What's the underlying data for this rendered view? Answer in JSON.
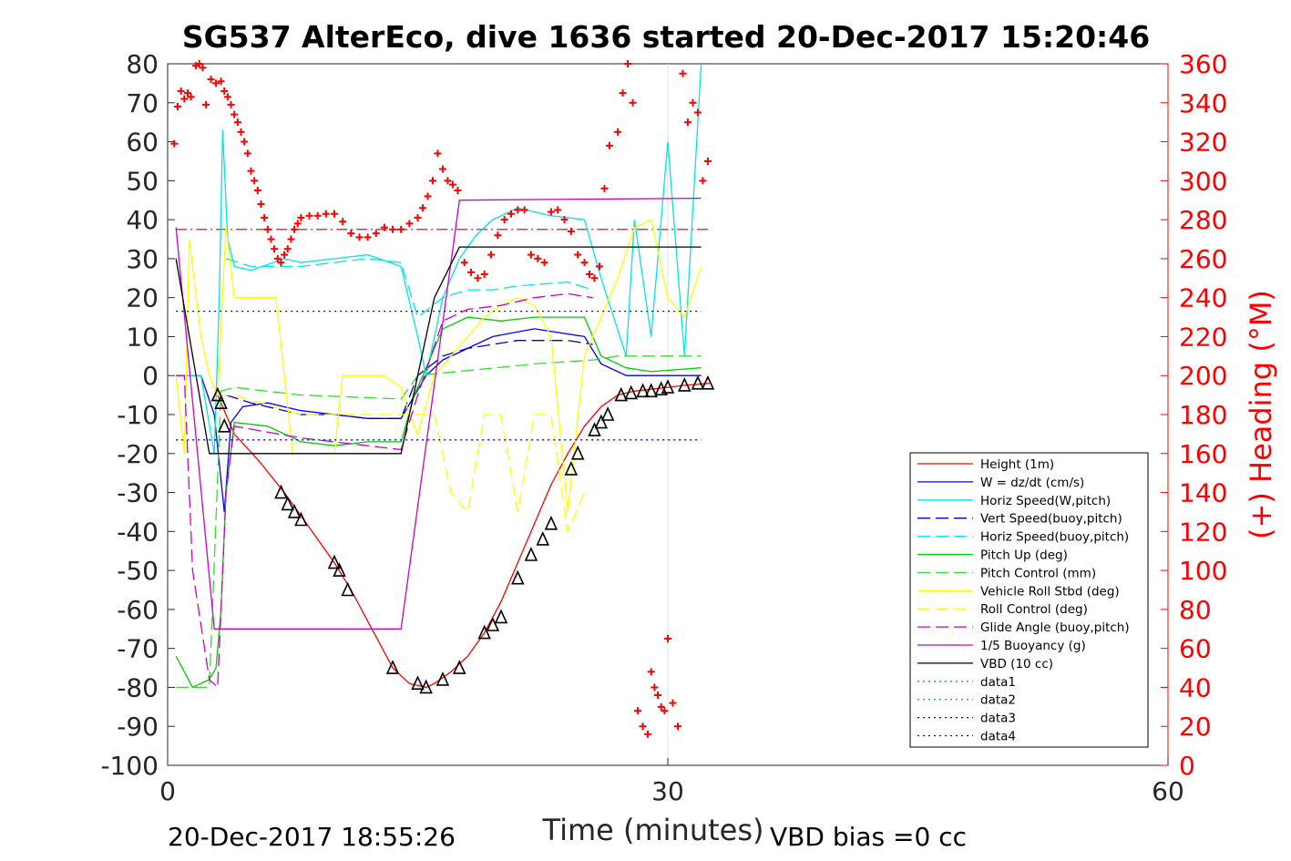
{
  "chart_data": {
    "type": "line",
    "title": "SG537 AlterEco, dive 1636 started 20-Dec-2017 15:20:46",
    "xlabel": "Time (minutes)",
    "ylabel": "",
    "y2label": "(+) Heading (°M)",
    "xlim": [
      0,
      60
    ],
    "ylim": [
      -100,
      80
    ],
    "y2lim": [
      0,
      360
    ],
    "x_ticks": [
      "0",
      "30",
      "60"
    ],
    "y_ticks": [
      "80",
      "70",
      "60",
      "50",
      "40",
      "30",
      "20",
      "10",
      "0",
      "-10",
      "-20",
      "-30",
      "-40",
      "-50",
      "-60",
      "-70",
      "-80",
      "-90",
      "-100"
    ],
    "y2_ticks": [
      "360",
      "340",
      "320",
      "300",
      "280",
      "260",
      "240",
      "220",
      "200",
      "180",
      "160",
      "140",
      "120",
      "100",
      "80",
      "60",
      "40",
      "20",
      "0"
    ],
    "grid": "x at 30 only",
    "legend_position": "lower-right",
    "footer_left": "20-Dec-2017 18:55:26",
    "footer_right": "VBD bias =0 cc",
    "series": [
      {
        "name": "Height (1m)",
        "color": "#ff0000",
        "style": "solid",
        "x": [
          3,
          4,
          5.5,
          7,
          8,
          10,
          11,
          12,
          13.5,
          14.5,
          15.5,
          16,
          17,
          18,
          19,
          20,
          21,
          22,
          23,
          24,
          25,
          26,
          27,
          28,
          29,
          30,
          31,
          32.5
        ],
        "y": [
          -5,
          -15,
          -22,
          -30,
          -36,
          -48,
          -55,
          -63,
          -75,
          -79,
          -80,
          -79,
          -76,
          -72,
          -66,
          -58,
          -48,
          -38,
          -28,
          -20,
          -13,
          -8,
          -5,
          -4,
          -3.5,
          -3,
          -2.5,
          -2
        ]
      },
      {
        "name": "W = dz/dt (cm/s)",
        "color": "#0000ff",
        "style": "solid",
        "x": [
          0.5,
          2,
          2.8,
          3.4,
          3.8,
          4.5,
          6,
          8,
          10,
          12,
          14,
          15.5,
          16.5,
          17.5,
          18.5,
          19.5,
          22,
          25,
          26,
          27.5,
          29,
          32
        ],
        "y": [
          0,
          0,
          -10,
          -35,
          -12,
          -8,
          -7,
          -9,
          -10,
          -11,
          -11,
          0,
          4,
          6,
          8,
          10,
          12,
          10,
          3,
          0,
          0,
          0
        ]
      },
      {
        "name": "Horiz Speed(W,pitch)",
        "color": "#00e5e5",
        "style": "solid",
        "x": [
          0.5,
          2,
          2.8,
          3.1,
          3.3,
          3.6,
          4,
          5,
          7,
          8,
          10,
          12,
          14,
          15,
          15.5,
          16.5,
          17.5,
          18.5,
          19.5,
          21,
          23,
          25,
          26,
          27.5,
          28,
          29,
          30,
          31,
          32
        ],
        "y": [
          0,
          0,
          -20,
          20,
          63,
          35,
          28,
          27,
          30,
          29,
          30,
          31,
          28,
          10,
          0,
          20,
          30,
          36,
          40,
          43,
          41,
          40,
          25,
          5,
          40,
          10,
          60,
          5,
          80
        ]
      },
      {
        "name": "Vert Speed(buoy,pitch)",
        "color": "#0000cc",
        "style": "dash",
        "x": [
          3.5,
          5,
          8,
          10,
          12,
          14,
          15,
          16.5,
          18,
          19.5,
          21,
          24,
          25.5
        ],
        "y": [
          -5,
          -7,
          -10,
          -10,
          -11,
          -11,
          0,
          5,
          7,
          8,
          9,
          9,
          8
        ]
      },
      {
        "name": "Horiz Speed(buoy,pitch)",
        "color": "#00e5e5",
        "style": "dash",
        "x": [
          3.5,
          5,
          8,
          10,
          12,
          14,
          15,
          16.5,
          18,
          19.5,
          21,
          24,
          25.5
        ],
        "y": [
          30,
          28,
          28,
          29,
          30,
          29,
          15,
          20,
          22,
          22,
          23,
          24,
          22
        ]
      },
      {
        "name": "Pitch Up (deg)",
        "color": "#00cc00",
        "style": "solid",
        "x": [
          0.5,
          1.5,
          2.5,
          2.9,
          3.2,
          3.5,
          4,
          6,
          8,
          10,
          12,
          14,
          14.8,
          15.5,
          16.5,
          18,
          20,
          22,
          25,
          26,
          27.5,
          29,
          32
        ],
        "y": [
          -72,
          -80,
          -78,
          -75,
          -60,
          -30,
          -12,
          -13,
          -17,
          -18,
          -17,
          -17,
          -5,
          2,
          12,
          15,
          14,
          15,
          15,
          5,
          2,
          1,
          2
        ]
      },
      {
        "name": "Pitch Control (mm)",
        "color": "#33dd33",
        "style": "dash",
        "x": [
          0.5,
          2.5,
          3.2,
          4,
          8,
          14,
          15,
          22,
          25.5,
          27,
          32
        ],
        "y": [
          -80,
          -80,
          -4,
          -3,
          -5,
          -6,
          0,
          3,
          4,
          5,
          5
        ]
      },
      {
        "name": "Vehicle Roll Stbd (deg)",
        "color": "#ffff00",
        "style": "solid",
        "x": [
          0.5,
          1,
          1.3,
          2,
          2.5,
          3,
          3.5,
          4,
          5,
          6.5,
          7,
          7.5,
          8,
          10,
          10.5,
          11,
          13,
          14,
          14.5,
          15,
          16,
          17,
          18,
          19,
          20,
          21,
          22,
          23,
          24,
          25,
          26,
          27,
          28,
          29,
          30,
          31,
          32
        ],
        "y": [
          0,
          -20,
          35,
          10,
          0,
          -5,
          38,
          20,
          20,
          20,
          0,
          -20,
          -20,
          -20,
          0,
          0,
          0,
          -3,
          -10,
          -15,
          0,
          5,
          10,
          15,
          18,
          20,
          18,
          10,
          -35,
          5,
          15,
          25,
          38,
          40,
          20,
          15,
          28
        ]
      },
      {
        "name": "Roll Control (deg)",
        "color": "#ffff00",
        "style": "dash",
        "x": [
          3,
          4,
          8,
          10,
          12,
          14,
          15,
          16,
          17,
          18,
          19,
          20,
          21,
          22,
          23,
          24,
          25
        ],
        "y": [
          -5,
          -5,
          -10,
          -10,
          -10,
          -10,
          -10,
          -10,
          -30,
          -35,
          -10,
          -10,
          -35,
          -10,
          -10,
          -40,
          -30
        ]
      },
      {
        "name": "Glide Angle (buoy,pitch)",
        "color": "#cc00cc",
        "style": "dash",
        "x": [
          0.5,
          1,
          1.5,
          2.5,
          3,
          3.5,
          4,
          8,
          12,
          14,
          15,
          16.5,
          18,
          20,
          22,
          24,
          25.5
        ],
        "y": [
          0,
          0,
          -50,
          -78,
          -80,
          -30,
          -13,
          -16,
          -18,
          -19,
          -5,
          14,
          17,
          18,
          20,
          21,
          20
        ]
      },
      {
        "name": "1/5 Buoyancy (g)",
        "color": "#cc00cc",
        "style": "solid",
        "x": [
          0.5,
          2.8,
          14,
          17.5,
          32
        ],
        "y": [
          38,
          -65,
          -65,
          45,
          45.5
        ]
      },
      {
        "name": "VBD (10 cc)",
        "color": "#000000",
        "style": "solid",
        "x": [
          0.5,
          2.5,
          14,
          16,
          17.5,
          19,
          32
        ],
        "y": [
          30,
          -20,
          -20,
          20,
          33,
          33,
          33
        ]
      },
      {
        "name": "data1",
        "color": "#00cc00",
        "style": "dot",
        "x": [],
        "y": []
      },
      {
        "name": "data2",
        "color": "#00cc00",
        "style": "dot",
        "x": [],
        "y": []
      },
      {
        "name": "data3",
        "color": "#0000cc",
        "style": "dot",
        "x": [
          0.5,
          32
        ],
        "y": [
          16.5,
          16.5
        ]
      },
      {
        "name": "data4",
        "color": "#0000cc",
        "style": "dot",
        "x": [
          0.5,
          32
        ],
        "y": [
          -16.5,
          -16.5
        ]
      }
    ],
    "reference_lines": [
      {
        "y": 37.5,
        "color": "#cc0000",
        "style": "dashdot",
        "x": [
          0.5,
          32.5
        ]
      }
    ],
    "heading_points": {
      "name": "(+) Heading (°M)",
      "color": "#ff0000",
      "x": [
        0.4,
        0.6,
        0.8,
        1.0,
        1.2,
        1.4,
        1.7,
        1.9,
        2.1,
        2.3,
        2.6,
        2.9,
        3.2,
        3.4,
        3.6,
        3.8,
        4.0,
        4.2,
        4.4,
        4.6,
        4.8,
        5.0,
        5.2,
        5.4,
        5.6,
        5.8,
        6.0,
        6.2,
        6.4,
        6.6,
        6.8,
        7.0,
        7.2,
        7.4,
        7.6,
        7.8,
        8.0,
        8.5,
        9.0,
        9.5,
        10.0,
        10.5,
        11.0,
        11.5,
        12.0,
        12.5,
        13.0,
        13.5,
        14.0,
        14.5,
        15.0,
        15.3,
        15.6,
        15.9,
        16.2,
        16.5,
        16.8,
        17.1,
        17.4,
        17.8,
        18.2,
        18.6,
        19.0,
        19.4,
        19.8,
        20.2,
        20.6,
        21.0,
        21.4,
        21.8,
        22.2,
        22.6,
        23.0,
        23.4,
        23.8,
        24.2,
        24.6,
        25.0,
        25.3,
        25.6,
        25.9,
        26.2,
        26.5,
        27.0,
        27.3,
        27.6,
        27.9,
        28.2,
        28.5,
        28.8,
        29.0,
        29.2,
        29.4,
        29.6,
        29.8,
        30.0,
        30.3,
        30.6,
        30.9,
        31.2,
        31.5,
        31.8,
        32.1,
        32.4
      ],
      "y": [
        319,
        338,
        346,
        342,
        345,
        343,
        359,
        360,
        358,
        339,
        352,
        350,
        351,
        346,
        343,
        339,
        334,
        330,
        325,
        320,
        314,
        305,
        300,
        295,
        288,
        281,
        275,
        270,
        265,
        260,
        258,
        262,
        265,
        270,
        275,
        278,
        281,
        282,
        282,
        283,
        283,
        279,
        273,
        271,
        271,
        273,
        276,
        275,
        275,
        278,
        281,
        286,
        292,
        300,
        314,
        306,
        300,
        298,
        295,
        258,
        253,
        250,
        252,
        262,
        272,
        280,
        283,
        285,
        285,
        262,
        260,
        258,
        284,
        285,
        280,
        274,
        262,
        258,
        252,
        250,
        256,
        296,
        318,
        325,
        345,
        360,
        340,
        28,
        20,
        16,
        48,
        40,
        36,
        30,
        28,
        65,
        32,
        20,
        355,
        330,
        340,
        335,
        300,
        310
      ]
    },
    "depth_markers": {
      "color": "#000000",
      "x": [
        3,
        3.2,
        3.4,
        6.8,
        7.2,
        7.6,
        8.0,
        10.0,
        10.3,
        10.8,
        13.5,
        15.0,
        15.5,
        16.5,
        17.5,
        19,
        19.5,
        20,
        21,
        21.8,
        22.5,
        23,
        24.2,
        24.6,
        25.6,
        26,
        26.4,
        27.2,
        27.8,
        28.5,
        29,
        29.6,
        30,
        31,
        31.8,
        32.4
      ],
      "y": [
        -5,
        -7,
        -13,
        -30,
        -33,
        -35,
        -37,
        -48,
        -50,
        -55,
        -75,
        -79,
        -80,
        -78,
        -75,
        -66,
        -64,
        -62,
        -52,
        -46,
        -42,
        -38,
        -24,
        -20,
        -14,
        -12,
        -10,
        -5,
        -4.5,
        -4,
        -4,
        -3.5,
        -3,
        -2.5,
        -2,
        -2
      ]
    }
  },
  "legend": {
    "items": [
      {
        "label": "Height (1m)",
        "color": "#ff0000",
        "style": "solid"
      },
      {
        "label": "W = dz/dt (cm/s)",
        "color": "#0000ff",
        "style": "solid"
      },
      {
        "label": "Horiz Speed(W,pitch)",
        "color": "#00e5e5",
        "style": "solid"
      },
      {
        "label": "Vert Speed(buoy,pitch)",
        "color": "#0000cc",
        "style": "dash"
      },
      {
        "label": "Horiz Speed(buoy,pitch)",
        "color": "#00e5e5",
        "style": "dash"
      },
      {
        "label": "Pitch Up (deg)",
        "color": "#00cc00",
        "style": "solid"
      },
      {
        "label": "Pitch Control (mm)",
        "color": "#33dd33",
        "style": "dash"
      },
      {
        "label": "Vehicle Roll Stbd (deg)",
        "color": "#ffff00",
        "style": "solid"
      },
      {
        "label": "Roll Control (deg)",
        "color": "#ffff00",
        "style": "dash"
      },
      {
        "label": "Glide Angle (buoy,pitch)",
        "color": "#cc00cc",
        "style": "dash"
      },
      {
        "label": "1/5 Buoyancy (g)",
        "color": "#cc00cc",
        "style": "solid"
      },
      {
        "label": "VBD (10 cc)",
        "color": "#000000",
        "style": "solid"
      },
      {
        "label": "data1",
        "color": "#00cc00",
        "style": "dot"
      },
      {
        "label": "data2",
        "color": "#00cc00",
        "style": "dot"
      },
      {
        "label": "data3",
        "color": "#0000cc",
        "style": "dot"
      },
      {
        "label": "data4",
        "color": "#0000cc",
        "style": "dot"
      }
    ]
  }
}
